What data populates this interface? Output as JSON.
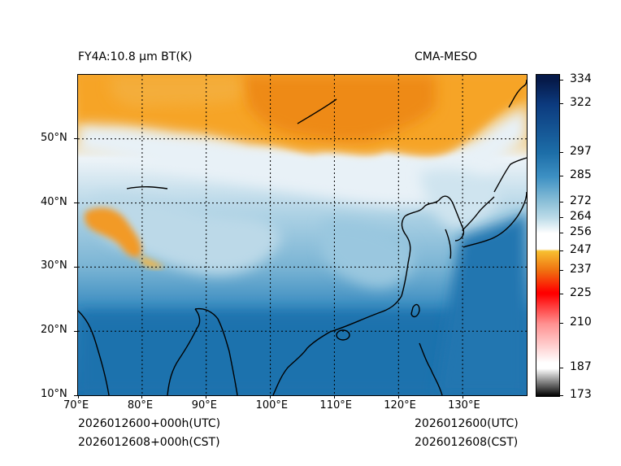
{
  "header": {
    "title_left": "FY4A:10.8 µm BT(K)",
    "title_right": "CMA-MESO"
  },
  "footer": {
    "utc_left": "2026012600+000h(UTC)",
    "cst_left": "2026012608+000h(CST)",
    "utc_right": "2026012600(UTC)",
    "cst_right": "2026012608(CST)"
  },
  "map": {
    "lon_range": [
      70,
      140
    ],
    "lat_range": [
      10,
      60
    ],
    "lon_ticks": [
      {
        "value": 70,
        "label": "70°E"
      },
      {
        "value": 80,
        "label": "80°E"
      },
      {
        "value": 90,
        "label": "90°E"
      },
      {
        "value": 100,
        "label": "100°E"
      },
      {
        "value": 110,
        "label": "110°E"
      },
      {
        "value": 120,
        "label": "120°E"
      },
      {
        "value": 130,
        "label": "130°E"
      }
    ],
    "lat_ticks": [
      {
        "value": 10,
        "label": "10°N"
      },
      {
        "value": 20,
        "label": "20°N"
      },
      {
        "value": 30,
        "label": "30°N"
      },
      {
        "value": 40,
        "label": "40°N"
      },
      {
        "value": 50,
        "label": "50°N"
      }
    ]
  },
  "colorbar": {
    "min": 173,
    "max": 337,
    "ticks": [
      {
        "value": 334,
        "label": "334"
      },
      {
        "value": 322,
        "label": "322"
      },
      {
        "value": 297,
        "label": "297"
      },
      {
        "value": 285,
        "label": "285"
      },
      {
        "value": 272,
        "label": "272"
      },
      {
        "value": 264,
        "label": "264"
      },
      {
        "value": 256,
        "label": "256"
      },
      {
        "value": 247,
        "label": "247"
      },
      {
        "value": 237,
        "label": "237"
      },
      {
        "value": 225,
        "label": "225"
      },
      {
        "value": 210,
        "label": "210"
      },
      {
        "value": 187,
        "label": "187"
      },
      {
        "value": 173,
        "label": "173"
      }
    ],
    "colors": {
      "c173": "#000000",
      "c187": "#ffffff",
      "c210": "#ff9090",
      "c225": "#ff0000",
      "c237": "#f07010",
      "c247": "#f7c030",
      "c256": "#ffffff",
      "c264": "#bcdbe8",
      "c272": "#8cc0d8",
      "c285": "#3d90c3",
      "c297": "#1d6ea8",
      "c322": "#0c3a7e",
      "c334": "#061a4a"
    }
  }
}
